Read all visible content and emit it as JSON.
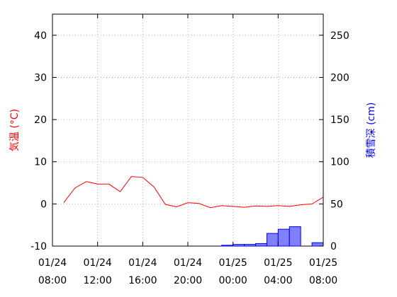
{
  "chart_data": {
    "type": "line+bar",
    "left_axis": {
      "label": "気温 (°C)",
      "color": "#ff0000",
      "ylim": [
        -10,
        45
      ],
      "ticks": [
        "-10",
        "0",
        "10",
        "20",
        "30",
        "40"
      ]
    },
    "right_axis": {
      "label": "積雪深 (cm)",
      "color": "#0000ff",
      "ylim": [
        0,
        275
      ],
      "ticks": [
        "0",
        "50",
        "100",
        "150",
        "200",
        "250"
      ]
    },
    "x_axis": {
      "xlim": [
        0,
        24
      ],
      "ticks": [
        {
          "x": 0,
          "line1": "01/24",
          "line2": "08:00"
        },
        {
          "x": 4,
          "line1": "01/24",
          "line2": "12:00"
        },
        {
          "x": 8,
          "line1": "01/24",
          "line2": "16:00"
        },
        {
          "x": 12,
          "line1": "01/24",
          "line2": "20:00"
        },
        {
          "x": 16,
          "line1": "01/25",
          "line2": "00:00"
        },
        {
          "x": 20,
          "line1": "01/25",
          "line2": "04:00"
        },
        {
          "x": 24,
          "line1": "01/25",
          "line2": "08:00"
        }
      ]
    },
    "grid": true,
    "series": [
      {
        "type": "line",
        "axis": "left",
        "color": "#ff0000",
        "points": [
          [
            1,
            0.3
          ],
          [
            2,
            3.8
          ],
          [
            3,
            5.3
          ],
          [
            4,
            4.7
          ],
          [
            5,
            4.7
          ],
          [
            6,
            2.9
          ],
          [
            7,
            6.5
          ],
          [
            8,
            6.3
          ],
          [
            9,
            4.0
          ],
          [
            10,
            -0.1
          ],
          [
            11,
            -0.7
          ],
          [
            12,
            0.3
          ],
          [
            13,
            0.1
          ],
          [
            14,
            -0.9
          ],
          [
            15,
            -0.4
          ],
          [
            16,
            -0.6
          ],
          [
            17,
            -0.8
          ],
          [
            18,
            -0.5
          ],
          [
            19,
            -0.6
          ],
          [
            20,
            -0.4
          ],
          [
            21,
            -0.6
          ],
          [
            22,
            -0.2
          ],
          [
            23,
            0.0
          ],
          [
            24,
            1.6
          ]
        ]
      },
      {
        "type": "bar",
        "axis": "right",
        "color": "#0000ff",
        "fill": "#8080ff",
        "points": [
          [
            16,
            1
          ],
          [
            17,
            2
          ],
          [
            18,
            2
          ],
          [
            19,
            3
          ],
          [
            20,
            15
          ],
          [
            21,
            20
          ],
          [
            22,
            23
          ],
          [
            24,
            4
          ]
        ]
      }
    ]
  }
}
